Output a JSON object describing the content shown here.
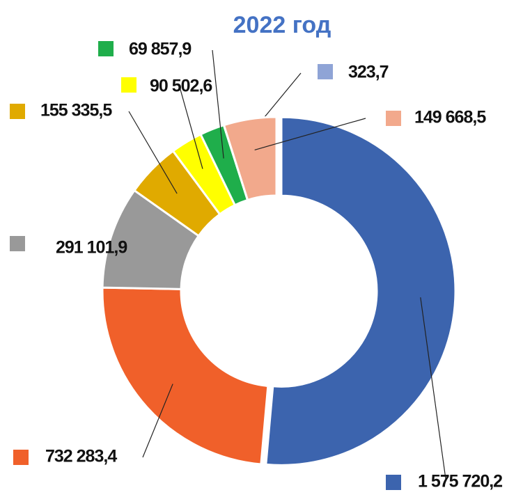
{
  "chart_data": {
    "type": "donut",
    "title": "2022 год",
    "values": [
      1575720.2,
      732283.4,
      291101.9,
      155335.5,
      90502.6,
      69857.9,
      323.7,
      149668.5
    ],
    "value_labels": [
      "1 575 720,2",
      "732 283,4",
      "291 101,9",
      "155 335,5",
      "90 502,6",
      "69 857,9",
      "323,7",
      "149 668,5"
    ],
    "colors": [
      "#3c64ae",
      "#f0602a",
      "#999999",
      "#e0aa00",
      "#ffff00",
      "#1fae4b",
      "#8fa4d6",
      "#f2a98c"
    ]
  }
}
